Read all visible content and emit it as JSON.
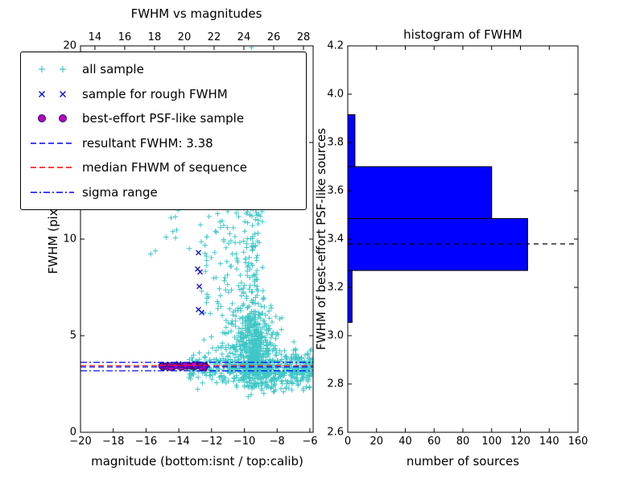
{
  "chart_data": [
    {
      "type": "scatter",
      "title": "FWHM vs magnitudes",
      "xlabel": "magnitude (bottom:isnt / top:calib)",
      "ylabel": "FWHM (pix)",
      "axes": {
        "x_bottom": {
          "min": -20,
          "max": -5.8,
          "ticks": [
            -20,
            -18,
            -16,
            -14,
            -12,
            -10,
            -8,
            -6
          ],
          "labels": [
            "−20",
            "−18",
            "−16",
            "−14",
            "−12",
            "−10",
            "−8",
            "−6"
          ]
        },
        "x_top": {
          "min": 13.03,
          "max": 28.65,
          "ticks": [
            14,
            16,
            18,
            20,
            22,
            24,
            26,
            28
          ],
          "labels": [
            "14",
            "16",
            "18",
            "20",
            "22",
            "24",
            "26",
            "28"
          ]
        },
        "y": {
          "min": 0,
          "max": 20,
          "ticks": [
            0,
            5,
            10,
            15,
            20
          ],
          "labels": [
            "0",
            "5",
            "10",
            "15",
            "20"
          ]
        }
      },
      "legend": {
        "items": [
          {
            "label": "all sample",
            "marker": "plus",
            "color": "#3fc6c6"
          },
          {
            "label": "sample for rough FWHM",
            "marker": "x",
            "color": "#0000cd"
          },
          {
            "label": "best-effort PSF-like sample",
            "marker": "circle",
            "color": "#bf00bf",
            "edge": "#14145f"
          },
          {
            "label": "resultant FWHM: 3.38",
            "marker": "dashed",
            "color": "#0000ff"
          },
          {
            "label": "median FHWM of sequence",
            "marker": "dashed",
            "color": "#ff0000"
          },
          {
            "label": "sigma range",
            "marker": "dashdot",
            "color": "#0000ff"
          }
        ]
      },
      "series": [
        {
          "name": "all sample",
          "marker": "plus",
          "color": "#3fc6c6",
          "clusters": [
            {
              "n": 520,
              "x": {
                "dist": "normal",
                "mean": -9.4,
                "sd": 0.65
              },
              "y": {
                "dist": "normal",
                "mean": 4.3,
                "sd": 1.2,
                "clip": [
                  2.3,
                  8.5
                ]
              }
            },
            {
              "n": 150,
              "x": {
                "dist": "normal",
                "mean": -9.55,
                "sd": 0.3
              },
              "y": {
                "dist": "uniform",
                "a": 5.5,
                "b": 13.2
              }
            },
            {
              "n": 330,
              "x": {
                "dist": "uniform",
                "a": -13.4,
                "b": -5.85
              },
              "y": {
                "dist": "normal",
                "mean": 3.35,
                "sd": 0.4,
                "clip": [
                  2.2,
                  4.6
                ]
              }
            },
            {
              "n": 100,
              "x": {
                "dist": "uniform",
                "a": -12.7,
                "b": -10.2
              },
              "y": {
                "dist": "uniform",
                "a": 3.9,
                "b": 11.8
              }
            },
            {
              "n": 34,
              "x": {
                "dist": "uniform",
                "a": -11.0,
                "b": -7.6
              },
              "y": {
                "dist": "uniform",
                "a": 11.5,
                "b": 15.8
              }
            },
            {
              "n": 7,
              "x": {
                "dist": "uniform",
                "a": -10.0,
                "b": -8.6
              },
              "y": {
                "dist": "uniform",
                "a": 15.8,
                "b": 20.0
              }
            },
            {
              "n": 10,
              "x": {
                "dist": "uniform",
                "a": -15.9,
                "b": -13.2
              },
              "y": {
                "dist": "uniform",
                "a": 8.6,
                "b": 11.5
              }
            },
            {
              "n": 80,
              "x": {
                "dist": "uniform",
                "a": -7.2,
                "b": -5.85
              },
              "y": {
                "dist": "normal",
                "mean": 3.2,
                "sd": 0.55,
                "clip": [
                  2.0,
                  4.8
                ]
              }
            },
            {
              "n": 120,
              "x": {
                "dist": "normal",
                "mean": -8.6,
                "sd": 1.0
              },
              "y": {
                "dist": "normal",
                "mean": 2.9,
                "sd": 0.45,
                "clip": [
                  1.8,
                  4.0
                ]
              }
            }
          ]
        },
        {
          "name": "sample for rough FWHM",
          "marker": "x",
          "color": "#0000cd",
          "points": [
            [
              -12.8,
              9.3
            ],
            [
              -12.85,
              8.45
            ],
            [
              -12.7,
              8.3
            ],
            [
              -12.75,
              7.55
            ],
            [
              -12.8,
              6.35
            ],
            [
              -12.6,
              6.2
            ],
            [
              -15.0,
              3.45
            ],
            [
              -14.75,
              3.4
            ],
            [
              -14.5,
              3.5
            ],
            [
              -14.2,
              3.38
            ],
            [
              -13.9,
              3.44
            ],
            [
              -13.6,
              3.35
            ],
            [
              -13.35,
              3.48
            ],
            [
              -13.1,
              3.4
            ],
            [
              -12.85,
              3.36
            ],
            [
              -12.6,
              3.45
            ],
            [
              -12.4,
              3.52
            ],
            [
              -12.55,
              3.3
            ],
            [
              -13.0,
              3.55
            ],
            [
              -14.0,
              3.55
            ]
          ]
        },
        {
          "name": "best-effort PSF-like sample",
          "marker": "circle",
          "color": "#bf00bf",
          "edge": "#14145f",
          "cluster": {
            "n": 42,
            "x": {
              "dist": "uniform",
              "a": -15.1,
              "b": -12.35
            },
            "y": {
              "dist": "normal",
              "mean": 3.42,
              "sd": 0.05,
              "clip": [
                3.3,
                3.55
              ]
            }
          }
        }
      ],
      "hlines": [
        {
          "label": "resultant FWHM: 3.38",
          "y": 3.38,
          "color": "#0000ff",
          "dash": "dashed"
        },
        {
          "label": "median FHWM of sequence",
          "y": 3.45,
          "color": "#ff0000",
          "dash": "dashed"
        },
        {
          "label": "sigma range upper",
          "y": 3.62,
          "color": "#0000ff",
          "dash": "dashdot"
        },
        {
          "label": "sigma range lower",
          "y": 3.18,
          "color": "#0000ff",
          "dash": "dashdot"
        }
      ],
      "resultant_fwhm": 3.38
    },
    {
      "type": "bar",
      "orientation": "horizontal",
      "title": "histogram of FWHM",
      "xlabel": "number of sources",
      "ylabel": "FWHM of best-effort PSF-like sources",
      "axes": {
        "x": {
          "min": 0,
          "max": 160,
          "ticks": [
            0,
            20,
            40,
            60,
            80,
            100,
            120,
            140,
            160
          ],
          "labels": [
            "0",
            "20",
            "40",
            "60",
            "80",
            "100",
            "120",
            "140",
            "160"
          ]
        },
        "y": {
          "min": 2.6,
          "max": 4.2,
          "ticks": [
            2.6,
            2.8,
            3.0,
            3.2,
            3.4,
            3.6,
            3.8,
            4.0,
            4.2
          ],
          "labels": [
            "2.6",
            "2.8",
            "3.0",
            "3.2",
            "3.4",
            "3.6",
            "3.8",
            "4.0",
            "4.2"
          ]
        }
      },
      "bar_color": "#0000ff",
      "bar_edge": "#000000",
      "bins": [
        {
          "from": 3.055,
          "to": 3.27,
          "count": 3
        },
        {
          "from": 3.27,
          "to": 3.485,
          "count": 125
        },
        {
          "from": 3.485,
          "to": 3.7,
          "count": 100
        },
        {
          "from": 3.7,
          "to": 3.915,
          "count": 5
        }
      ],
      "median_line": {
        "y": 3.38,
        "color": "#000000",
        "dash": "dashed"
      }
    }
  ]
}
